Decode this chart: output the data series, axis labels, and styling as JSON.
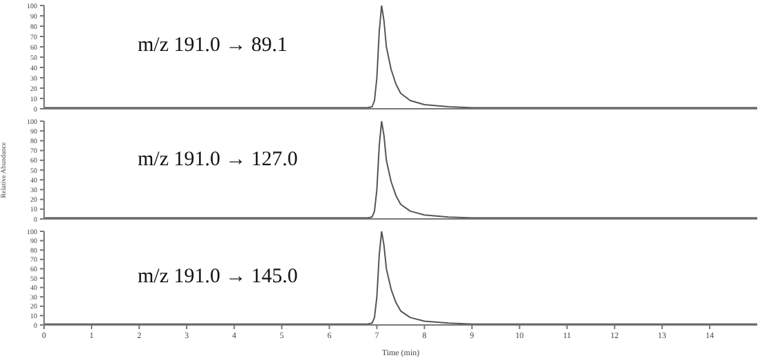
{
  "chart_data": [
    {
      "type": "line",
      "x": [
        0,
        1,
        2,
        3,
        4,
        5,
        6,
        6.8,
        6.9,
        6.95,
        7.0,
        7.05,
        7.1,
        7.15,
        7.2,
        7.3,
        7.4,
        7.5,
        7.7,
        8.0,
        8.5,
        9,
        10,
        12,
        15
      ],
      "series": [
        {
          "color": "#555555",
          "values": [
            1,
            1,
            1,
            1,
            1,
            1,
            1,
            1,
            2,
            8,
            30,
            75,
            100,
            85,
            60,
            38,
            24,
            15,
            8,
            4,
            2,
            1,
            1,
            1,
            1
          ]
        }
      ],
      "xlim": [
        0,
        15
      ],
      "xticks": [
        0,
        1,
        2,
        3,
        4,
        5,
        6,
        7,
        8,
        9,
        10,
        11,
        12,
        13,
        14
      ],
      "ylim": [
        0,
        100
      ],
      "yticks": [
        0,
        10,
        20,
        30,
        40,
        50,
        60,
        70,
        80,
        90,
        100
      ],
      "tick_labels": "y",
      "annotations": [
        "m/z 191.0 → 89.1"
      ]
    },
    {
      "type": "line",
      "x": [
        0,
        1,
        2,
        3,
        4,
        5,
        6,
        6.8,
        6.9,
        6.95,
        7.0,
        7.05,
        7.1,
        7.15,
        7.2,
        7.3,
        7.4,
        7.5,
        7.7,
        8.0,
        8.5,
        9,
        10,
        12,
        15
      ],
      "series": [
        {
          "color": "#555555",
          "values": [
            1,
            1,
            1,
            1,
            1,
            1,
            1,
            1,
            2,
            8,
            30,
            75,
            100,
            85,
            60,
            38,
            24,
            15,
            8,
            4,
            2,
            1,
            1,
            1,
            1
          ]
        }
      ],
      "xlim": [
        0,
        15
      ],
      "xticks": [
        0,
        1,
        2,
        3,
        4,
        5,
        6,
        7,
        8,
        9,
        10,
        11,
        12,
        13,
        14
      ],
      "ylim": [
        0,
        100
      ],
      "yticks": [
        0,
        10,
        20,
        30,
        40,
        50,
        60,
        70,
        80,
        90,
        100
      ],
      "tick_labels": "y",
      "ylabel": "Relative Abundance",
      "annotations": [
        "m/z 191.0 → 127.0"
      ]
    },
    {
      "type": "line",
      "x": [
        0,
        1,
        2,
        3,
        4,
        5,
        6,
        6.8,
        6.9,
        6.95,
        7.0,
        7.05,
        7.1,
        7.15,
        7.2,
        7.3,
        7.4,
        7.5,
        7.7,
        8.0,
        8.5,
        9,
        10,
        12,
        15
      ],
      "series": [
        {
          "color": "#555555",
          "values": [
            1,
            1,
            1,
            1,
            1,
            1,
            1,
            1,
            2,
            8,
            30,
            75,
            100,
            85,
            60,
            38,
            24,
            15,
            8,
            4,
            2,
            1,
            1,
            1,
            1
          ]
        }
      ],
      "xlim": [
        0,
        15
      ],
      "xticks": [
        0,
        1,
        2,
        3,
        4,
        5,
        6,
        7,
        8,
        9,
        10,
        11,
        12,
        13,
        14
      ],
      "ylim": [
        0,
        100
      ],
      "yticks": [
        0,
        10,
        20,
        30,
        40,
        50,
        60,
        70,
        80,
        90,
        100
      ],
      "xlabel": "Time (min)",
      "annotations": [
        "m/z 191.0 → 145.0"
      ]
    }
  ]
}
